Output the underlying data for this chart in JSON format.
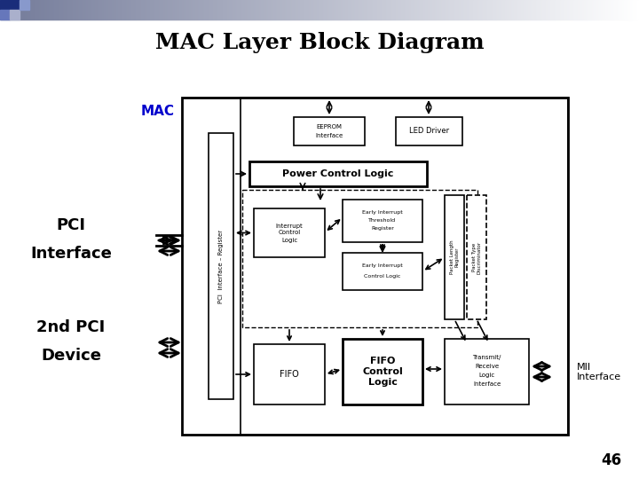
{
  "title": "MAC Layer Block Diagram",
  "title_fontsize": 18,
  "background_color": "#ffffff",
  "page_number": "46",
  "mac_label": "MAC",
  "mac_label_color": "#0000cc",
  "pci_interface_label": "PCI\nInterface",
  "pci_device_label": "2nd PCI\nDevice",
  "mii_label": "MII\nInterface",
  "header_colors": [
    "#3355aa",
    "#7788bb",
    "#aabbcc",
    "#ccccdd",
    "#ddddee",
    "#eeeeff"
  ],
  "corner_dark": "#2244aa",
  "corner_mid": "#8899cc",
  "corner_light": "#bbccdd"
}
